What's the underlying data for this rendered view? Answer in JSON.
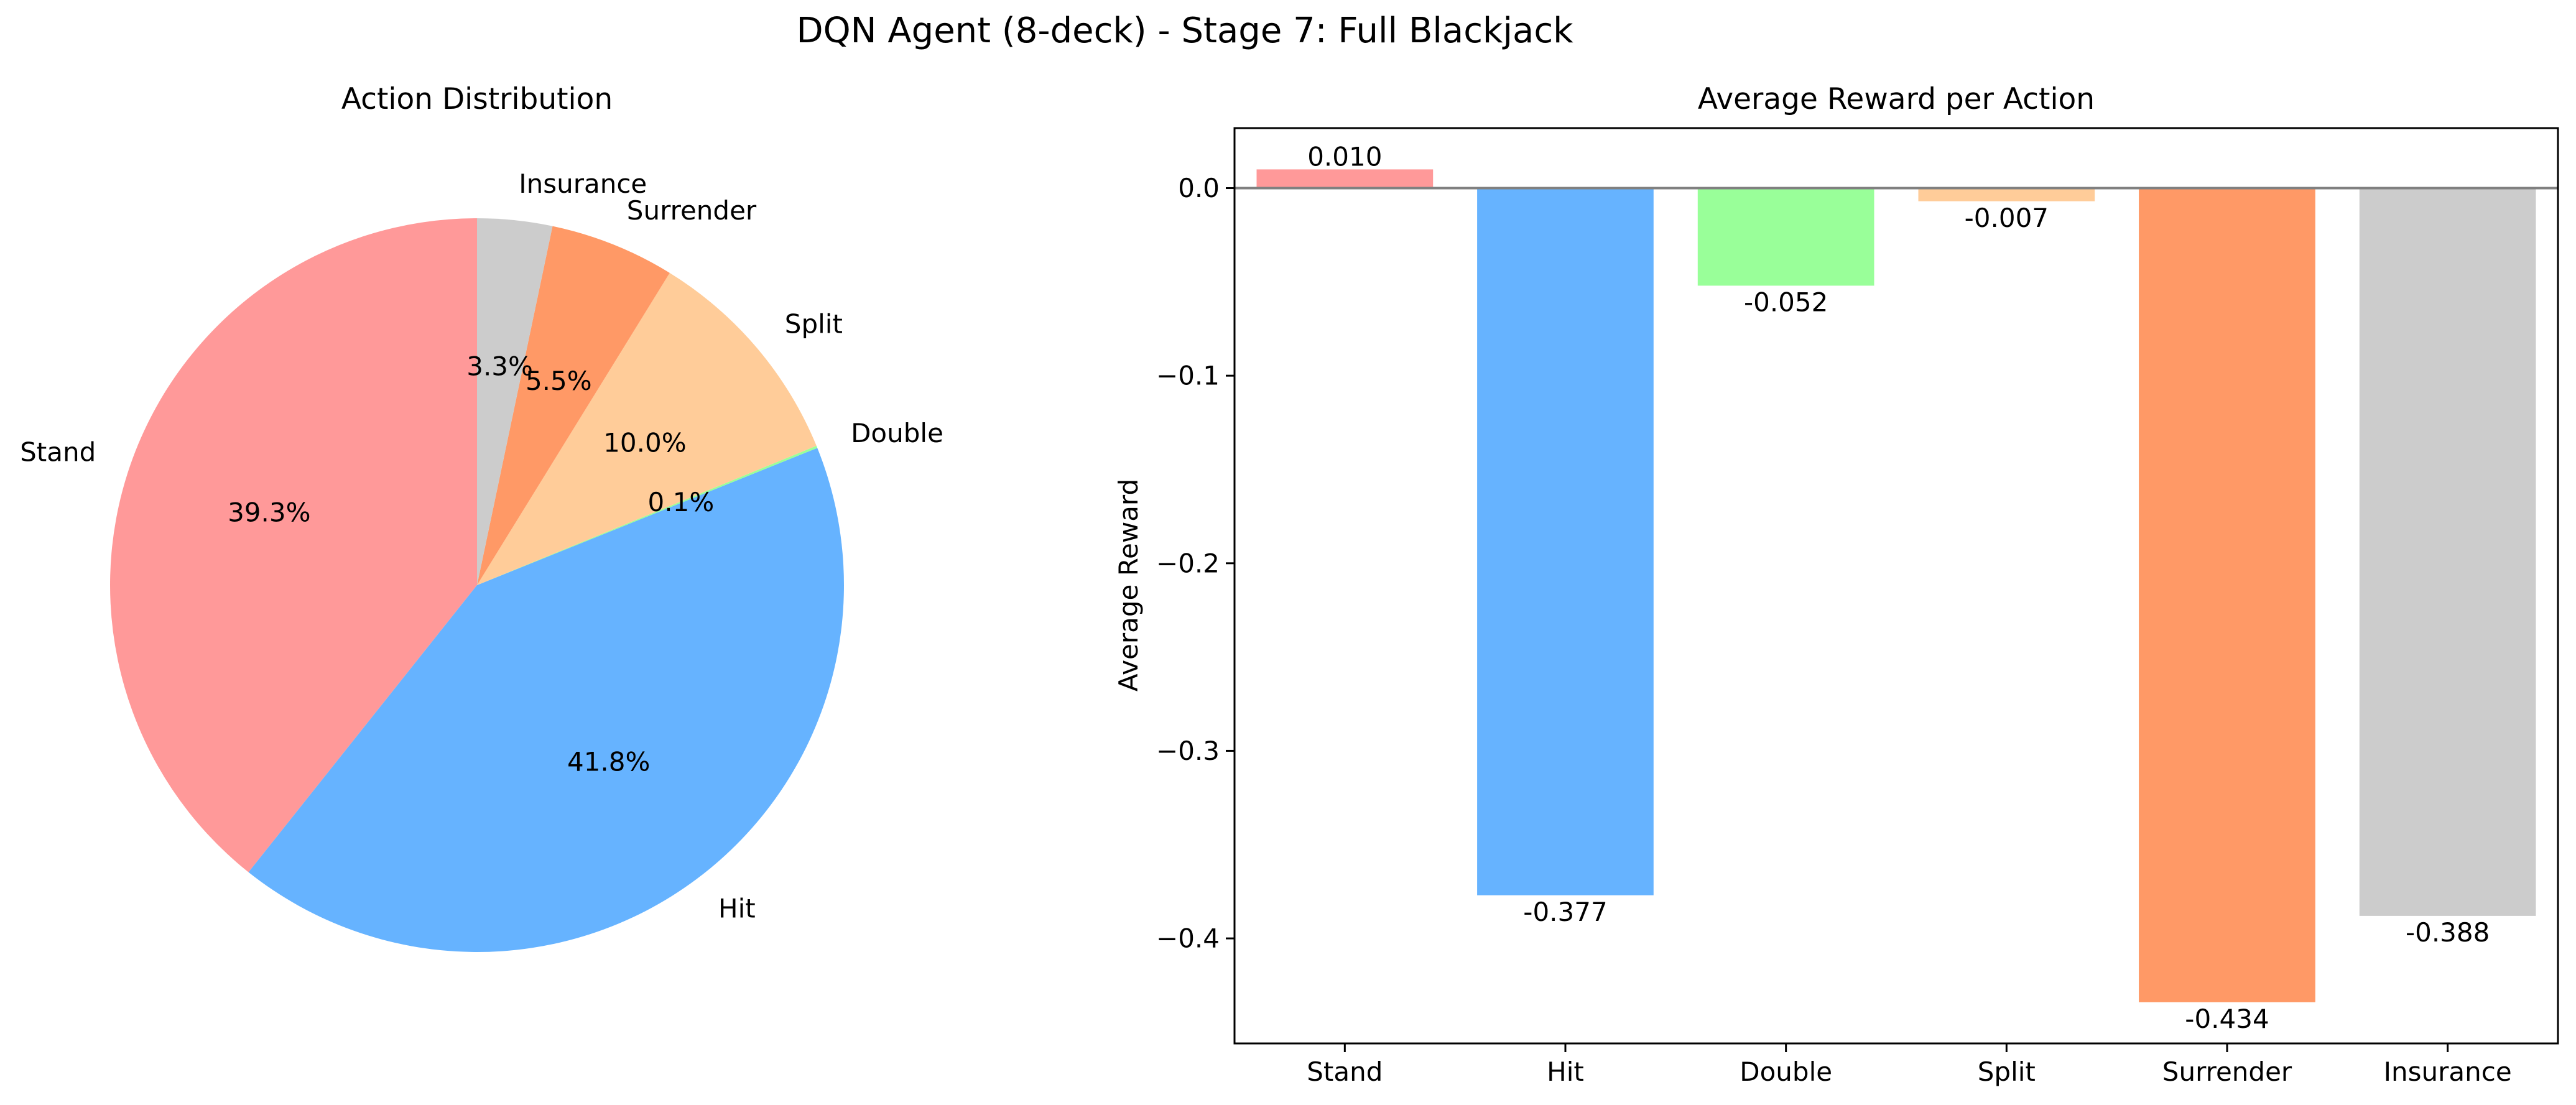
{
  "figure": {
    "suptitle": "DQN Agent (8-deck) - Stage 7: Full Blackjack"
  },
  "chart_data": [
    {
      "type": "pie",
      "title": "Action Distribution",
      "labels": [
        "Stand",
        "Hit",
        "Double",
        "Split",
        "Surrender",
        "Insurance"
      ],
      "values": [
        39.3,
        41.8,
        0.1,
        10.0,
        5.5,
        3.3
      ],
      "value_labels": [
        "39.3%",
        "41.8%",
        "0.1%",
        "10.0%",
        "5.5%",
        "3.3%"
      ],
      "colors": [
        "#ff9999",
        "#66b3ff",
        "#99ff99",
        "#ffcc99",
        "#ff9966",
        "#cccccc"
      ],
      "start_angle": 90,
      "direction": "counterclockwise"
    },
    {
      "type": "bar",
      "title": "Average Reward per Action",
      "xlabel": "",
      "ylabel": "Average Reward",
      "categories": [
        "Stand",
        "Hit",
        "Double",
        "Split",
        "Surrender",
        "Insurance"
      ],
      "values": [
        0.01,
        -0.377,
        -0.052,
        -0.007,
        -0.434,
        -0.388
      ],
      "value_labels": [
        "0.010",
        "-0.377",
        "-0.052",
        "-0.007",
        "-0.434",
        "-0.388"
      ],
      "colors": [
        "#ff9999",
        "#66b3ff",
        "#99ff99",
        "#ffcc99",
        "#ff9966",
        "#cccccc"
      ],
      "ylim": [
        -0.456,
        0.032
      ],
      "yticks": [
        0.0,
        -0.1,
        -0.2,
        -0.3,
        -0.4
      ],
      "ytick_labels": [
        "0.0",
        "−0.1",
        "−0.2",
        "−0.3",
        "−0.4"
      ],
      "zero_line": true,
      "grid": false
    }
  ]
}
